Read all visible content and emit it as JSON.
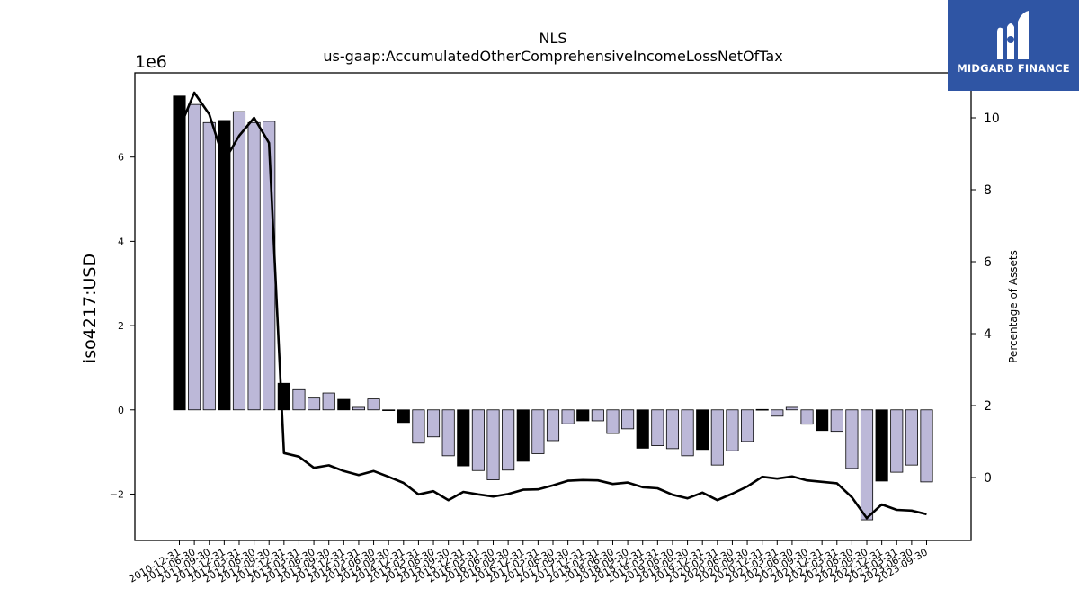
{
  "title": "NLS",
  "subtitle": "us-gaap:AccumulatedOtherComprehensiveIncomeLossNetOfTax",
  "ylabel": "iso4217:USD",
  "y_offset_label": "1e6",
  "y2label": "Percentage of Assets",
  "logo": {
    "text": "MIDGARD FINANCE"
  },
  "colors": {
    "bar_dark": "#000000",
    "bar_light": "#bcb8d8",
    "line": "#000000",
    "logo_bg": "#2f55a4"
  },
  "chart_data": {
    "type": "bar",
    "categories": [
      "2010-12-31",
      "2011-06-30",
      "2011-09-30",
      "2011-12-31",
      "2012-03-31",
      "2012-06-30",
      "2012-09-30",
      "2012-12-31",
      "2013-03-31",
      "2013-06-30",
      "2013-09-30",
      "2013-12-31",
      "2014-03-31",
      "2014-06-30",
      "2014-09-30",
      "2014-12-31",
      "2015-03-31",
      "2015-06-30",
      "2015-09-30",
      "2015-12-31",
      "2016-03-31",
      "2016-06-30",
      "2016-09-30",
      "2016-12-31",
      "2017-03-31",
      "2017-06-30",
      "2017-09-30",
      "2017-12-31",
      "2018-03-31",
      "2018-06-30",
      "2018-09-30",
      "2018-12-31",
      "2019-03-31",
      "2019-06-30",
      "2019-09-30",
      "2019-12-31",
      "2020-03-31",
      "2020-06-30",
      "2020-09-30",
      "2020-12-31",
      "2021-03-31",
      "2021-06-30",
      "2021-09-30",
      "2021-12-31",
      "2022-03-31",
      "2022-06-30",
      "2022-09-30",
      "2022-12-31",
      "2023-03-31",
      "2023-06-30",
      "2023-09-30"
    ],
    "series": [
      {
        "values": [
          7.45,
          7.25,
          6.82,
          6.87,
          7.08,
          6.82,
          6.85,
          0.63,
          0.48,
          0.28,
          0.4,
          0.25,
          0.06,
          0.26,
          -0.01,
          -0.3,
          -0.79,
          -0.64,
          -1.09,
          -1.33,
          -1.44,
          -1.66,
          -1.43,
          -1.22,
          -1.04,
          -0.73,
          -0.33,
          -0.26,
          -0.26,
          -0.56,
          -0.45,
          -0.91,
          -0.85,
          -0.92,
          -1.09,
          -0.94,
          -1.31,
          -0.97,
          -0.75,
          0.01,
          -0.15,
          0.06,
          -0.34,
          -0.49,
          -0.51,
          -1.39,
          -2.61,
          -1.69,
          -1.48,
          -1.31,
          -1.71
        ]
      }
    ],
    "bar_color_pattern": [
      "dark",
      "light",
      "light",
      "dark",
      "light",
      "light",
      "light",
      "dark",
      "light",
      "light",
      "light",
      "dark",
      "light",
      "light",
      "light",
      "dark",
      "light",
      "light",
      "light",
      "dark",
      "light",
      "light",
      "light",
      "dark",
      "light",
      "light",
      "light",
      "dark",
      "light",
      "light",
      "light",
      "dark",
      "light",
      "light",
      "light",
      "dark",
      "light",
      "light",
      "light",
      "dark",
      "light",
      "light",
      "light",
      "dark",
      "light",
      "light",
      "light",
      "dark",
      "light",
      "light",
      "light"
    ],
    "secondary_line": {
      "values": [
        9.7,
        10.7,
        10.1,
        8.8,
        9.5,
        10.0,
        9.3,
        0.68,
        0.58,
        0.27,
        0.34,
        0.18,
        0.07,
        0.18,
        0.02,
        -0.15,
        -0.47,
        -0.38,
        -0.63,
        -0.4,
        -0.47,
        -0.53,
        -0.46,
        -0.34,
        -0.33,
        -0.22,
        -0.09,
        -0.07,
        -0.08,
        -0.18,
        -0.14,
        -0.27,
        -0.3,
        -0.48,
        -0.58,
        -0.42,
        -0.63,
        -0.45,
        -0.25,
        0.02,
        -0.03,
        0.03,
        -0.08,
        -0.12,
        -0.16,
        -0.55,
        -1.13,
        -0.75,
        -0.9,
        -0.92,
        -1.02
      ]
    },
    "ylim": [
      -3.1,
      8.0
    ],
    "yticks": [
      -2,
      0,
      2,
      4,
      6
    ],
    "y2lim": [
      -1.75,
      11.25
    ],
    "y2ticks": [
      0,
      2,
      4,
      6,
      8,
      10
    ],
    "grid": false
  }
}
